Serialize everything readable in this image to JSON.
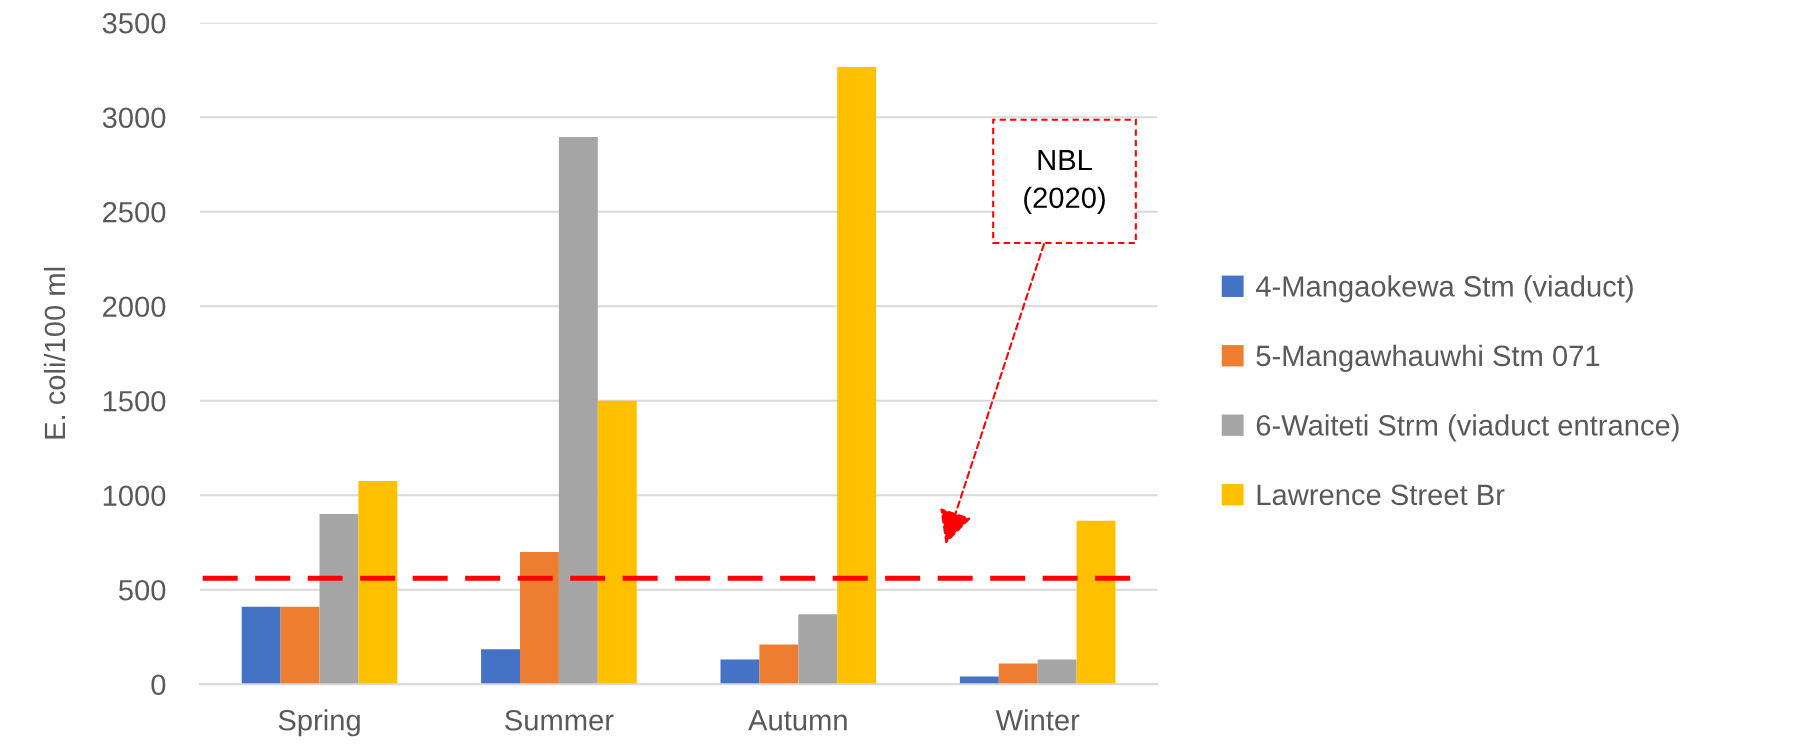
{
  "chart_data": {
    "type": "bar",
    "ylabel": "E. coli/100 ml",
    "categories": [
      "Spring",
      "Summer",
      "Autumn",
      "Winter"
    ],
    "series": [
      {
        "name": "4-Mangaokewa Stm (viaduct)",
        "color": "#4472c4",
        "values": [
          410,
          185,
          130,
          40
        ]
      },
      {
        "name": "5-Mangawhauwhi Stm 071",
        "color": "#ed7d31",
        "values": [
          410,
          700,
          210,
          110
        ]
      },
      {
        "name": "6-Waiteti Strm (viaduct entrance)",
        "color": "#a5a5a5",
        "values": [
          900,
          2895,
          370,
          130
        ]
      },
      {
        "name": "Lawrence Street Br",
        "color": "#ffc000",
        "values": [
          1075,
          1500,
          3265,
          865
        ]
      }
    ],
    "ylim": [
      0,
      3500
    ],
    "yticks": [
      0,
      500,
      1000,
      1500,
      2000,
      2500,
      3000,
      3500
    ],
    "grid": "y",
    "legend": "right",
    "ref_lines": [
      {
        "axis": "y",
        "value": 560,
        "color": "#ff0000",
        "line_style": "dashed"
      }
    ],
    "annotations": [
      "NBL\n(2020)"
    ]
  }
}
